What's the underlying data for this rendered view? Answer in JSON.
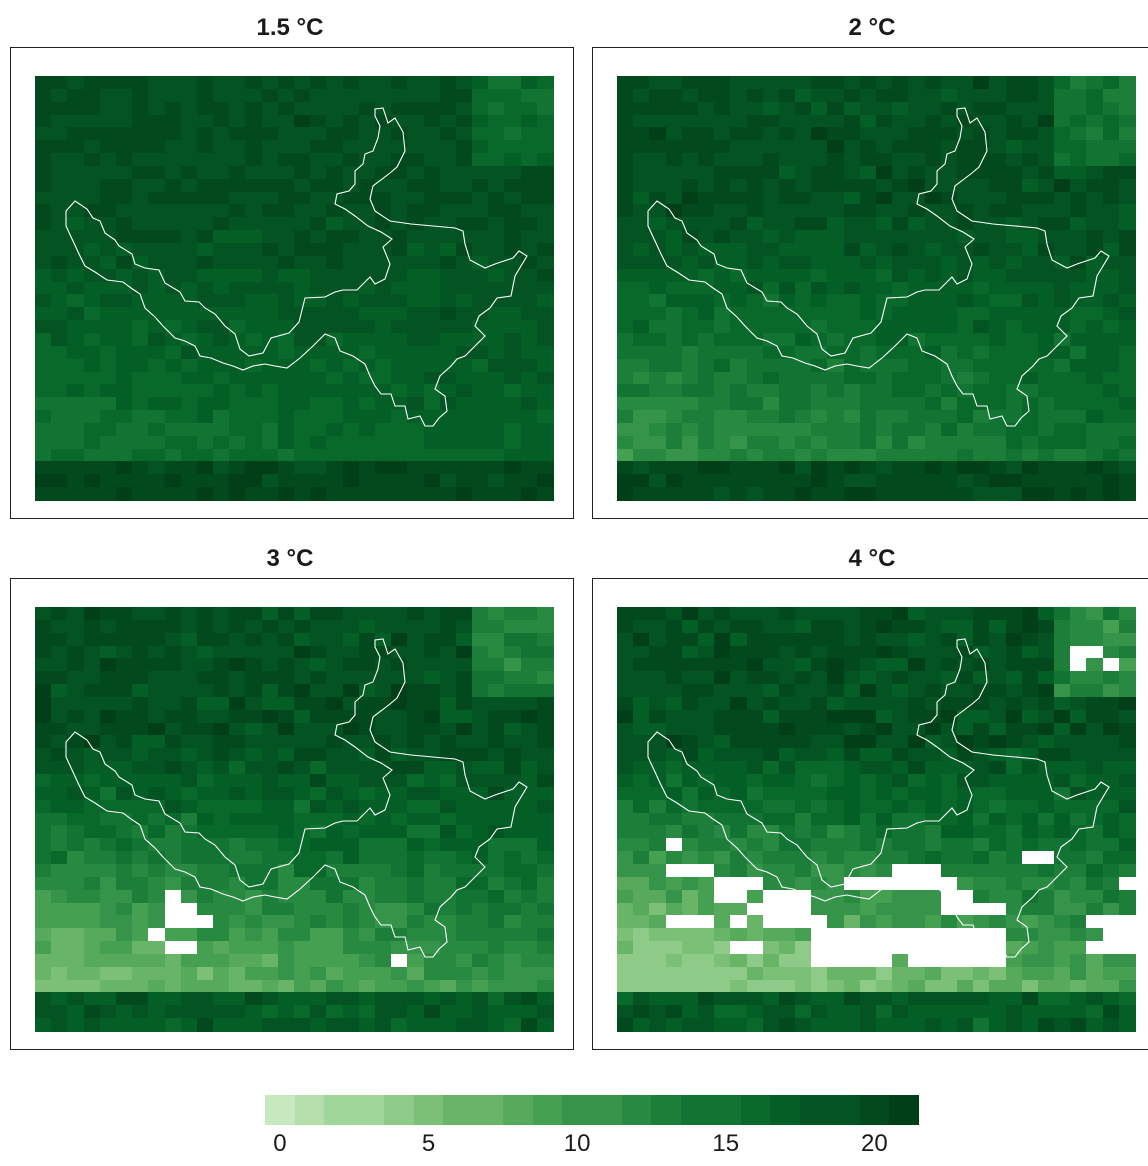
{
  "panels": [
    {
      "title": "1.5 °C",
      "missing": []
    },
    {
      "title": "2 °C",
      "missing": []
    },
    {
      "title": "3 °C",
      "missing": [
        [
          8,
          22
        ],
        [
          8,
          23
        ],
        [
          8,
          24
        ],
        [
          9,
          23
        ],
        [
          9,
          24
        ],
        [
          10,
          24
        ],
        [
          7,
          25
        ],
        [
          8,
          26
        ],
        [
          9,
          26
        ],
        [
          22,
          27
        ]
      ]
    },
    {
      "title": "4 °C",
      "missing": [
        [
          3,
          18
        ],
        [
          3,
          20
        ],
        [
          4,
          20
        ],
        [
          5,
          20
        ],
        [
          7,
          21
        ],
        [
          6,
          21
        ],
        [
          8,
          21
        ],
        [
          9,
          22
        ],
        [
          10,
          22
        ],
        [
          11,
          22
        ],
        [
          6,
          22
        ],
        [
          7,
          22
        ],
        [
          8,
          23
        ],
        [
          9,
          23
        ],
        [
          10,
          23
        ],
        [
          11,
          23
        ],
        [
          3,
          24
        ],
        [
          4,
          24
        ],
        [
          5,
          24
        ],
        [
          7,
          24
        ],
        [
          9,
          24
        ],
        [
          10,
          24
        ],
        [
          11,
          24
        ],
        [
          12,
          24
        ],
        [
          12,
          25
        ],
        [
          13,
          25
        ],
        [
          14,
          25
        ],
        [
          15,
          25
        ],
        [
          16,
          25
        ],
        [
          17,
          25
        ],
        [
          18,
          25
        ],
        [
          19,
          25
        ],
        [
          20,
          25
        ],
        [
          21,
          25
        ],
        [
          22,
          25
        ],
        [
          23,
          25
        ],
        [
          7,
          26
        ],
        [
          8,
          26
        ],
        [
          12,
          26
        ],
        [
          13,
          26
        ],
        [
          14,
          26
        ],
        [
          15,
          26
        ],
        [
          16,
          26
        ],
        [
          17,
          26
        ],
        [
          18,
          26
        ],
        [
          19,
          26
        ],
        [
          20,
          26
        ],
        [
          21,
          26
        ],
        [
          22,
          26
        ],
        [
          23,
          26
        ],
        [
          12,
          27
        ],
        [
          13,
          27
        ],
        [
          14,
          27
        ],
        [
          15,
          27
        ],
        [
          16,
          27
        ],
        [
          18,
          27
        ],
        [
          19,
          27
        ],
        [
          20,
          27
        ],
        [
          21,
          27
        ],
        [
          22,
          27
        ],
        [
          23,
          27
        ],
        [
          25,
          19
        ],
        [
          26,
          19
        ],
        [
          29,
          26
        ],
        [
          30,
          26
        ],
        [
          31,
          26
        ],
        [
          30,
          25
        ],
        [
          31,
          25
        ],
        [
          20,
          21
        ],
        [
          20,
          22
        ],
        [
          20,
          23
        ],
        [
          21,
          23
        ],
        [
          22,
          23
        ],
        [
          21,
          22
        ],
        [
          23,
          23
        ],
        [
          30,
          24
        ],
        [
          31,
          24
        ],
        [
          29,
          24
        ],
        [
          31,
          21
        ],
        [
          28,
          3
        ],
        [
          29,
          3
        ],
        [
          28,
          4
        ],
        [
          30,
          4
        ],
        [
          17,
          20
        ],
        [
          18,
          20
        ],
        [
          19,
          20
        ],
        [
          14,
          21
        ],
        [
          15,
          21
        ],
        [
          16,
          21
        ],
        [
          17,
          21
        ],
        [
          18,
          21
        ],
        [
          19,
          21
        ]
      ]
    }
  ],
  "colorbar": {
    "ticks": [
      "0",
      "5",
      "10",
      "15",
      "20"
    ],
    "min": -0.5,
    "max": 21.5
  },
  "colors": {
    "palette": [
      "#c7e9c0",
      "#b4dfad",
      "#a1d69a",
      "#8ecb88",
      "#7bc076",
      "#69b568",
      "#57a95c",
      "#45a051",
      "#359449",
      "#288a41",
      "#1c7e39",
      "#117433",
      "#08692b",
      "#045f27",
      "#035422",
      "#02491d",
      "#013f18"
    ],
    "outline": "#ffffff",
    "missing": "#ffffff"
  }
}
